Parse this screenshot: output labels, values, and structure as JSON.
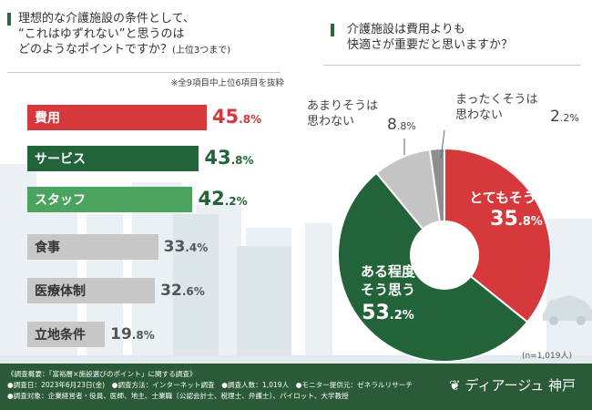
{
  "question1": {
    "line1": "理想的な介護施設の条件として、",
    "line2": "“これはゆずれない”と思うのは",
    "line3": "どのようなポイントですか？",
    "line3_small": "(上位3つまで)"
  },
  "question2": {
    "line1": "介護施設は費用よりも",
    "line2": "快適さが重要だと思いますか？"
  },
  "note1": "※全9項目中上位6項目を抜粋",
  "chart_data": [
    {
      "type": "bar",
      "orientation": "horizontal",
      "categories": [
        "費用",
        "サービス",
        "スタッフ",
        "食事",
        "医療体制",
        "立地条件"
      ],
      "values": [
        45.8,
        43.8,
        42.2,
        33.4,
        32.6,
        19.8
      ],
      "value_labels": [
        {
          "int": "45",
          "dec": ".8%"
        },
        {
          "int": "43",
          "dec": ".8%"
        },
        {
          "int": "42",
          "dec": ".2%"
        },
        {
          "int": "33",
          "dec": ".4%"
        },
        {
          "int": "32",
          "dec": ".6%"
        },
        {
          "int": "19",
          "dec": ".8%"
        }
      ],
      "colors": [
        "#d7383b",
        "#226339",
        "#4aa35f",
        "#c7c7c7",
        "#c7c7c7",
        "#c7c7c7"
      ],
      "unit": "%"
    },
    {
      "type": "pie",
      "labels": [
        "とてもそう思う",
        "ある程度そう思う",
        "あまりそうは思わない",
        "まったくそうは思わない"
      ],
      "values": [
        35.8,
        53.2,
        8.8,
        2.2
      ],
      "colors": [
        "#d7383b",
        "#226339",
        "#c4c4c4",
        "#8e8e8e"
      ],
      "start": "12 o'clock, clockwise",
      "slice_labels": {
        "very": {
          "line1": "とてもそう思う",
          "int": "35",
          "dec": ".8%"
        },
        "some": {
          "line1": "ある程度",
          "line2": "そう思う",
          "int": "53",
          "dec": ".2%"
        },
        "notmuch": {
          "line1": "あまりそうは",
          "line2": "思わない",
          "int": "8",
          "dec": ".8%"
        },
        "notatall": {
          "line1": "まったくそうは",
          "line2": "思わない",
          "int": "2",
          "dec": ".2%"
        }
      },
      "n_label": "(n=1,019人)"
    }
  ],
  "footer": {
    "line1": "《調査概要：「富裕層×施設選びのポイント」に関する調査》",
    "line2": "●調査日：2023年6月23日(金)　●調査方法：インターネット調査　●調査人数：1,019人　●モニター提供元：ゼネラルリサーチ",
    "line3": "●調査対象：企業経営者・役員、医師、地主、士業職〔公認会計士、税理士、弁護士〕、パイロット、大学教授",
    "brand": "ディアージュ 神戸"
  },
  "colors": {
    "red": "#d7383b",
    "green": "#226339",
    "lightgreen": "#4aa35f",
    "gray": "#c7c7c7",
    "footer": "#2a5a38"
  }
}
